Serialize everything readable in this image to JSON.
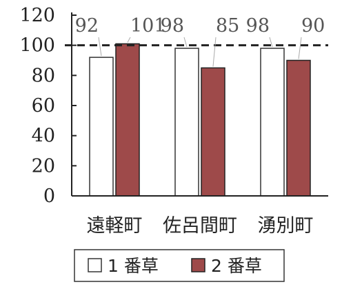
{
  "chart_data": {
    "type": "bar",
    "categories": [
      "遠軽町",
      "佐呂間町",
      "湧別町"
    ],
    "series": [
      {
        "name": "1 番草",
        "values": [
          92,
          98,
          98
        ],
        "labels": [
          "92",
          "98",
          "98"
        ],
        "color": "#ffffff"
      },
      {
        "name": "2 番草",
        "values": [
          101,
          85,
          90
        ],
        "labels": [
          "101",
          "85",
          "90"
        ],
        "color": "#9e4a4a"
      }
    ],
    "ylim": [
      0,
      120
    ],
    "yticks": [
      0,
      20,
      40,
      60,
      80,
      100,
      120
    ],
    "reference_line": 100,
    "legend_position": "bottom",
    "grid": false
  }
}
